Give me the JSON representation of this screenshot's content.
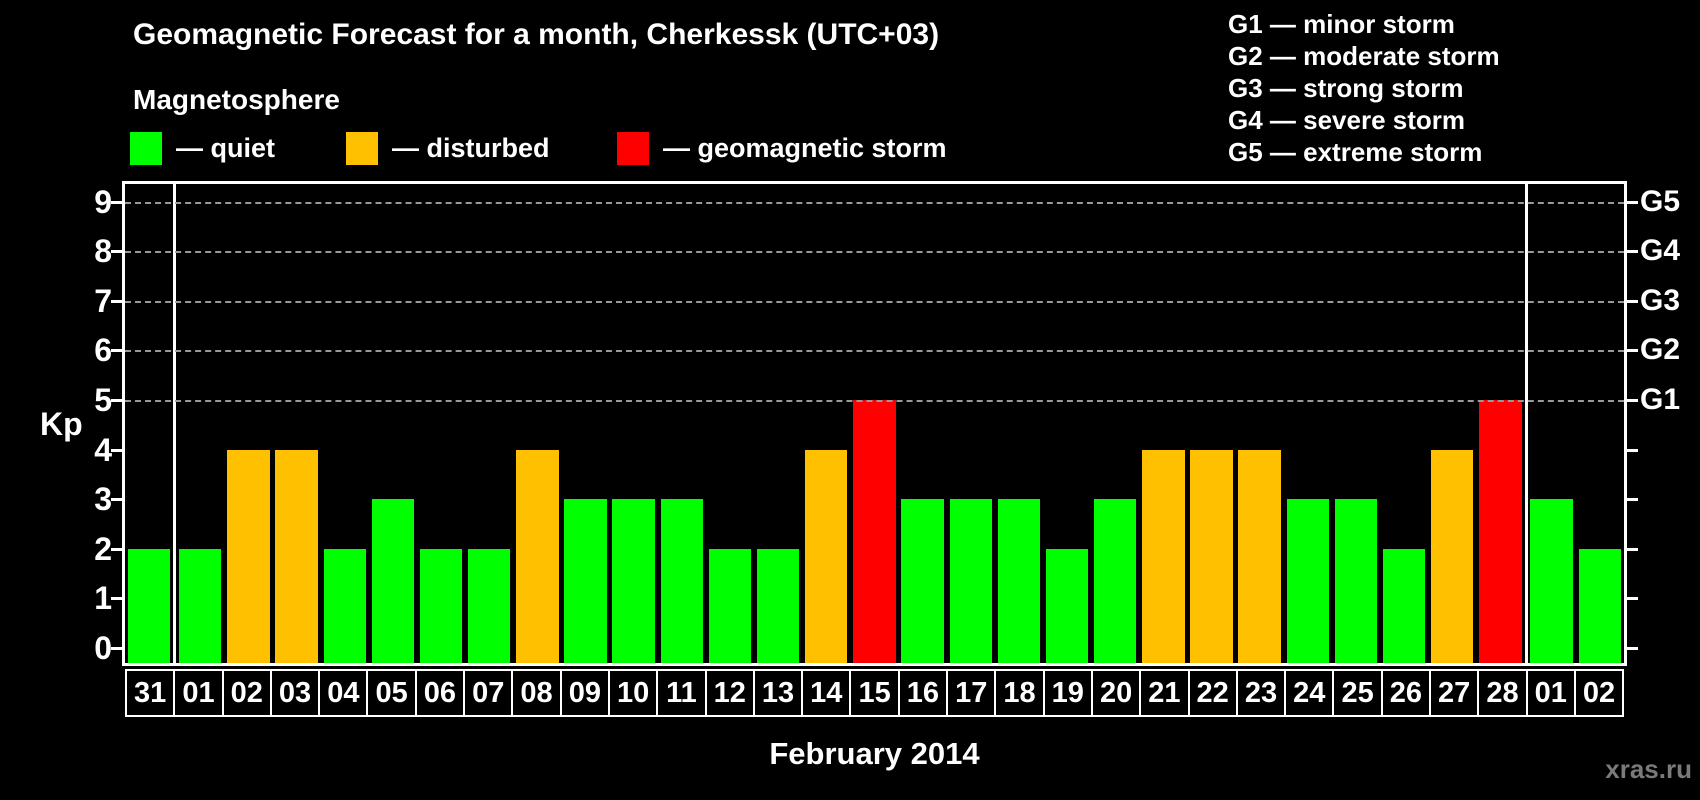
{
  "title": "Geomagnetic Forecast for a month, Cherkessk (UTC+03)",
  "subtitle": "Magnetosphere",
  "legend": {
    "quiet": "— quiet",
    "disturbed": "— disturbed",
    "storm": "— geomagnetic storm"
  },
  "g_legend": [
    "G1 — minor storm",
    "G2 — moderate storm",
    "G3 — strong storm",
    "G4 — severe storm",
    "G5 — extreme storm"
  ],
  "colors": {
    "quiet": "#00ff00",
    "disturbed": "#ffc000",
    "storm": "#ff0000"
  },
  "axis": {
    "kp_label": "Kp",
    "y_ticks": [
      0,
      1,
      2,
      3,
      4,
      5,
      6,
      7,
      8,
      9
    ],
    "right_labels": [
      {
        "label": "G1",
        "level": 5
      },
      {
        "label": "G2",
        "level": 6
      },
      {
        "label": "G3",
        "level": 7
      },
      {
        "label": "G4",
        "level": 8
      },
      {
        "label": "G5",
        "level": 9
      }
    ],
    "xlabel": "February 2014"
  },
  "watermark": "xras.ru",
  "chart_data": {
    "type": "bar",
    "title": "Geomagnetic Forecast for a month, Cherkessk (UTC+03)",
    "xlabel": "February 2014",
    "ylabel": "Kp",
    "ylim": [
      0,
      9.4
    ],
    "grid": "dashed horizontal at Kp 5-9 only",
    "legend_position": "top",
    "categories": [
      "31",
      "01",
      "02",
      "03",
      "04",
      "05",
      "06",
      "07",
      "08",
      "09",
      "10",
      "11",
      "12",
      "13",
      "14",
      "15",
      "16",
      "17",
      "18",
      "19",
      "20",
      "21",
      "22",
      "23",
      "24",
      "25",
      "26",
      "27",
      "28",
      "01",
      "02"
    ],
    "values": [
      2,
      2,
      4,
      4,
      2,
      3,
      2,
      2,
      4,
      3,
      3,
      3,
      2,
      2,
      4,
      5,
      3,
      3,
      3,
      2,
      3,
      4,
      4,
      4,
      3,
      3,
      2,
      4,
      5,
      3,
      2
    ],
    "statuses": [
      "quiet",
      "quiet",
      "disturbed",
      "disturbed",
      "quiet",
      "quiet",
      "quiet",
      "quiet",
      "disturbed",
      "quiet",
      "quiet",
      "quiet",
      "quiet",
      "quiet",
      "disturbed",
      "storm",
      "quiet",
      "quiet",
      "quiet",
      "quiet",
      "quiet",
      "disturbed",
      "disturbed",
      "disturbed",
      "quiet",
      "quiet",
      "quiet",
      "disturbed",
      "storm",
      "quiet",
      "quiet"
    ],
    "separators_after_index": [
      0,
      28
    ]
  }
}
